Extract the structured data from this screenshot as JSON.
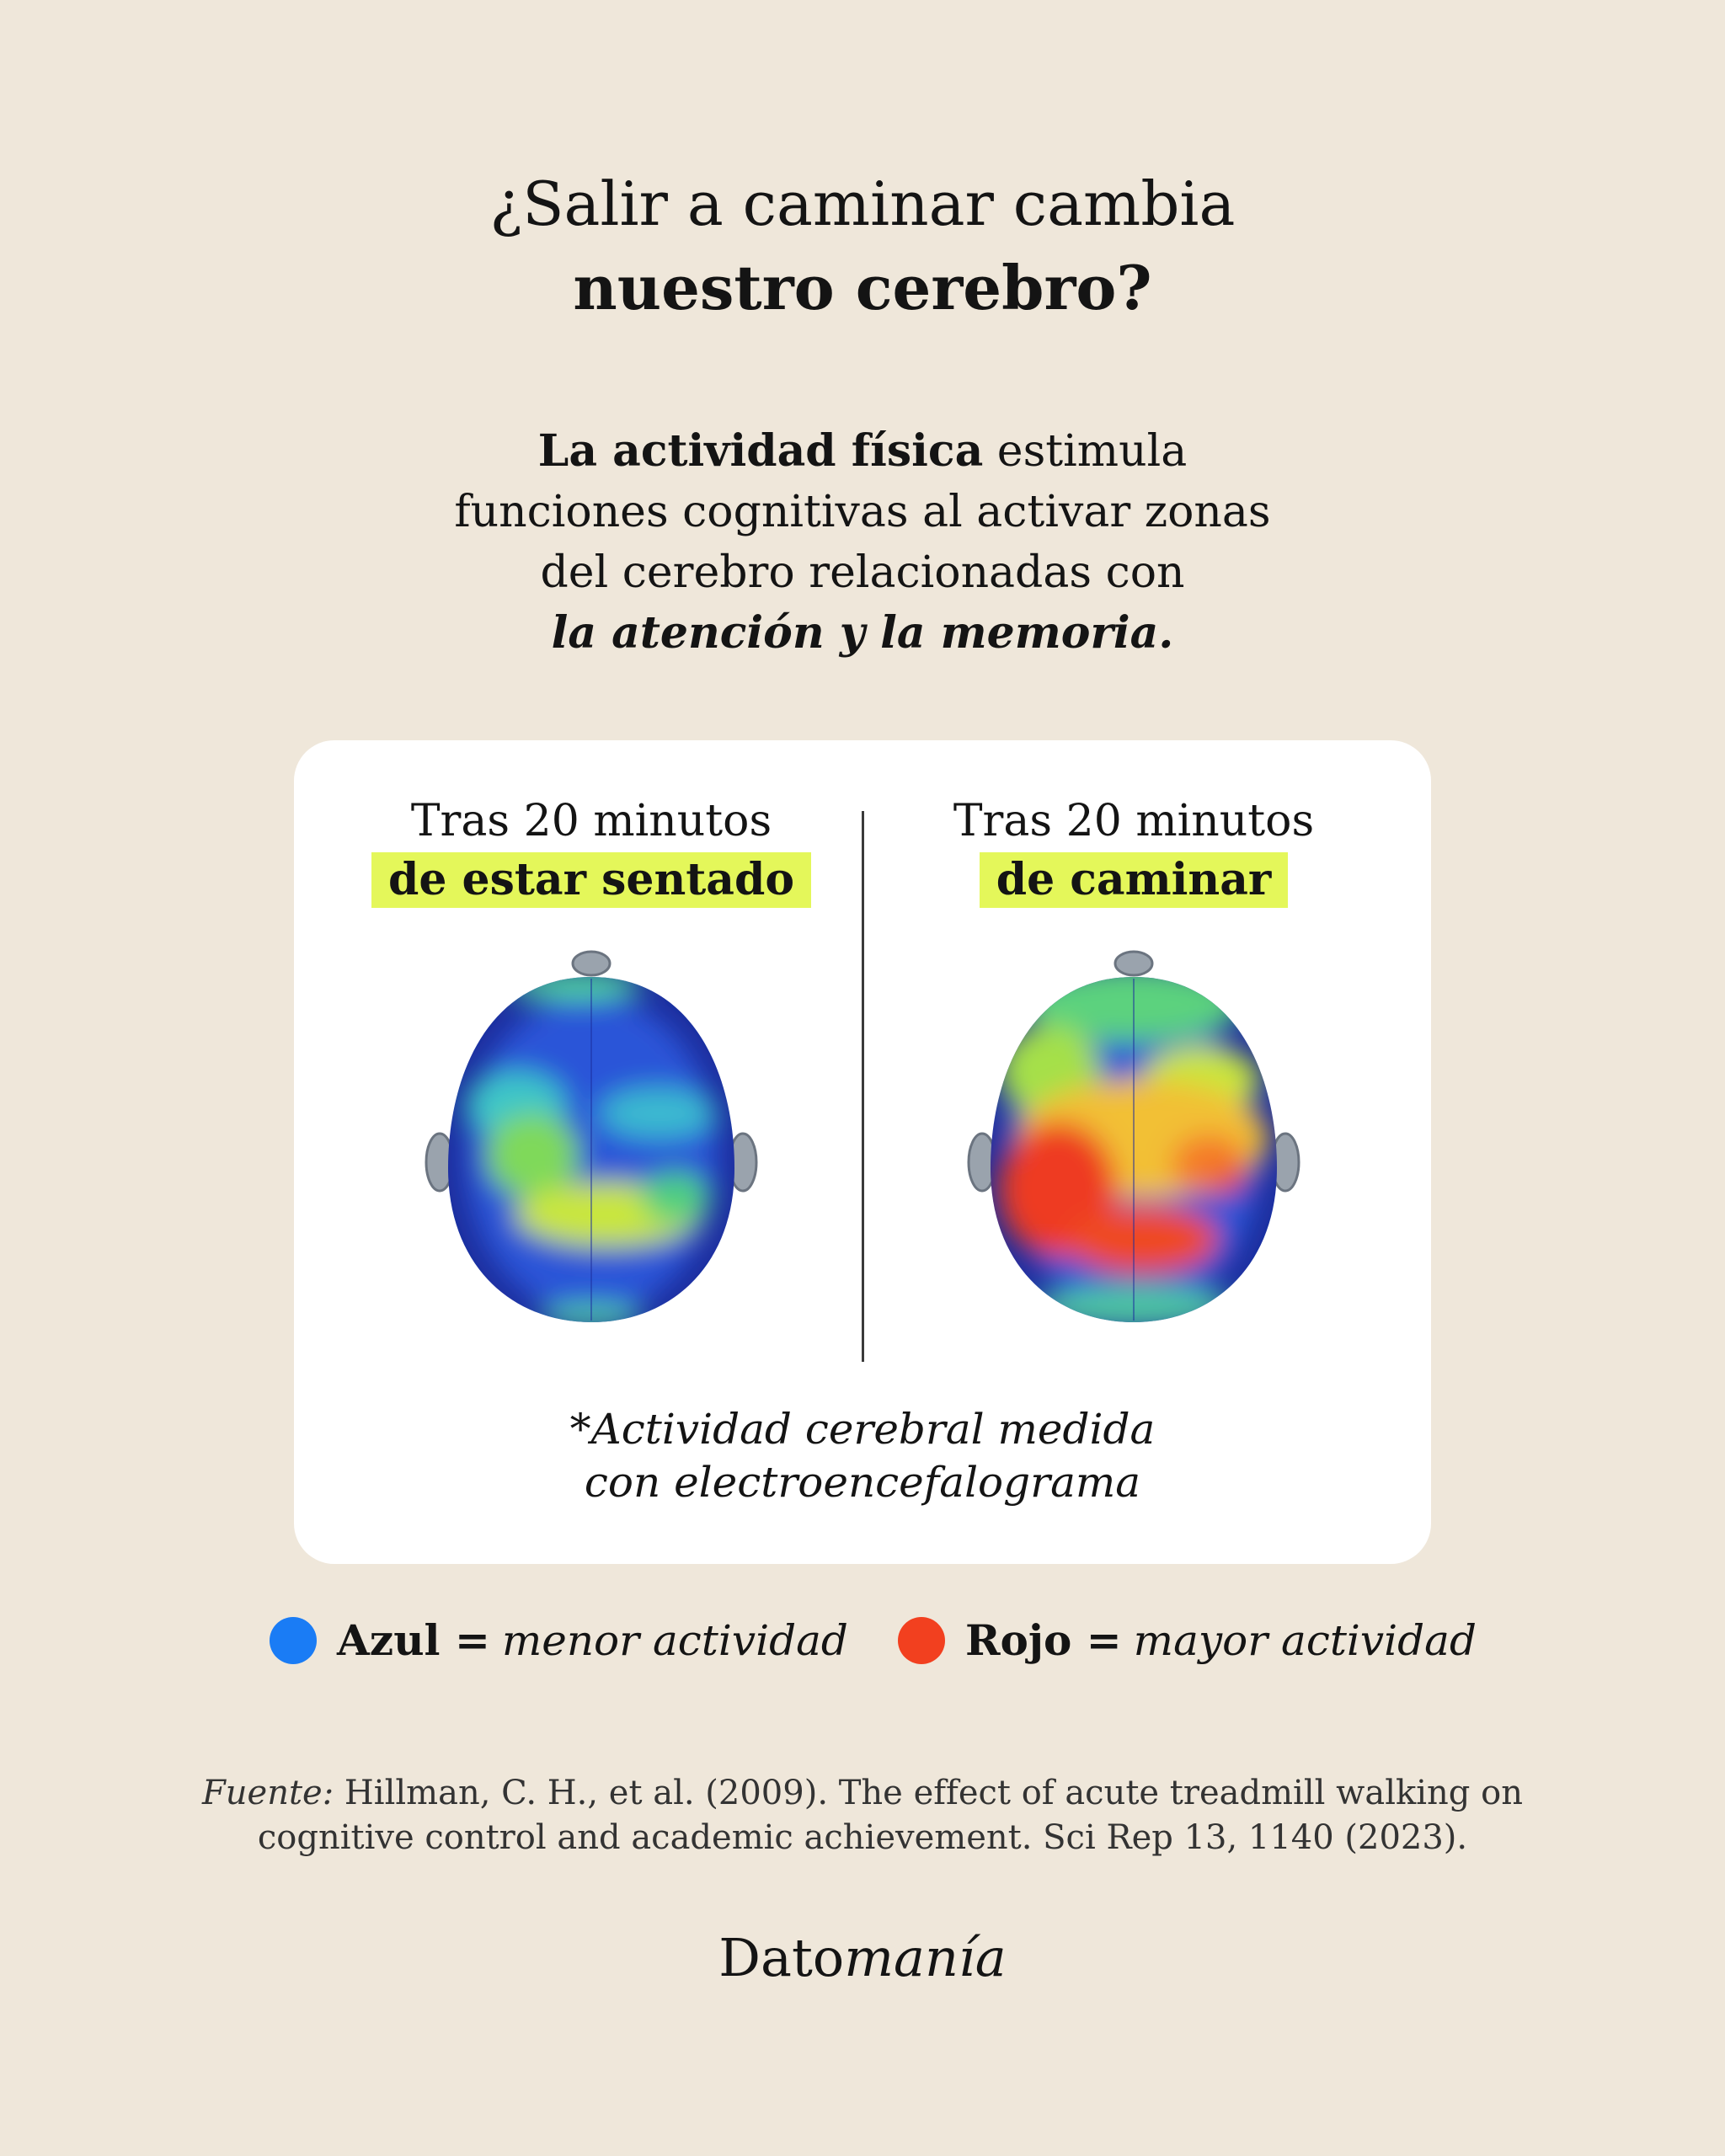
{
  "title": {
    "line1": "¿Salir a caminar cambia",
    "line2": "nuestro cerebro?"
  },
  "intro": {
    "bold": "La actividad física",
    "line1": "estimula",
    "line2": "funciones cognitivas al activar zonas",
    "line3": "del cerebro relacionadas con",
    "emphasis": "la atención y la memoria."
  },
  "panels": [
    {
      "line1": "Tras 20 minutos",
      "highlight": "de estar sentado"
    },
    {
      "line1": "Tras 20 minutos",
      "highlight": "de caminar"
    }
  ],
  "footnote": {
    "line1": "*Actividad cerebral medida",
    "line2": "con electroencefalograma"
  },
  "legend": [
    {
      "term": "Azul =",
      "meaning": "menor actividad",
      "color": "#1a7cf5"
    },
    {
      "term": "Rojo =",
      "meaning": "mayor actividad",
      "color": "#f2401f"
    }
  ],
  "source": {
    "label": "Fuente:",
    "line1": "Hillman, C. H., et al. (2009). The effect of acute treadmill walking on",
    "line2": "cognitive control and academic achievement. Sci Rep 13, 1140 (2023)."
  },
  "brand": {
    "plain": "Dato",
    "italic": "manía"
  }
}
